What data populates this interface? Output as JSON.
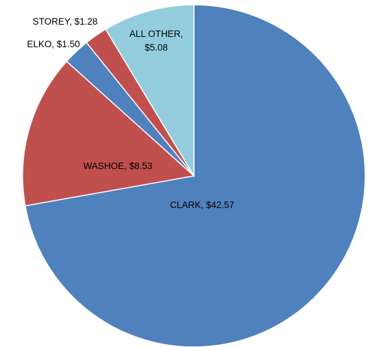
{
  "chart_data": {
    "type": "pie",
    "values": [
      42.57,
      8.53,
      1.5,
      1.28,
      5.08
    ],
    "value_labels": [
      "CLARK, $42.57",
      "WASHOE, $8.53",
      "ELKO, $1.50",
      "STOREY, $1.28",
      "ALL OTHER,\n$5.08"
    ],
    "colors": [
      "#4f81bd",
      "#c0504d",
      "#4f81bd",
      "#c0504d",
      "#93cddd"
    ]
  }
}
